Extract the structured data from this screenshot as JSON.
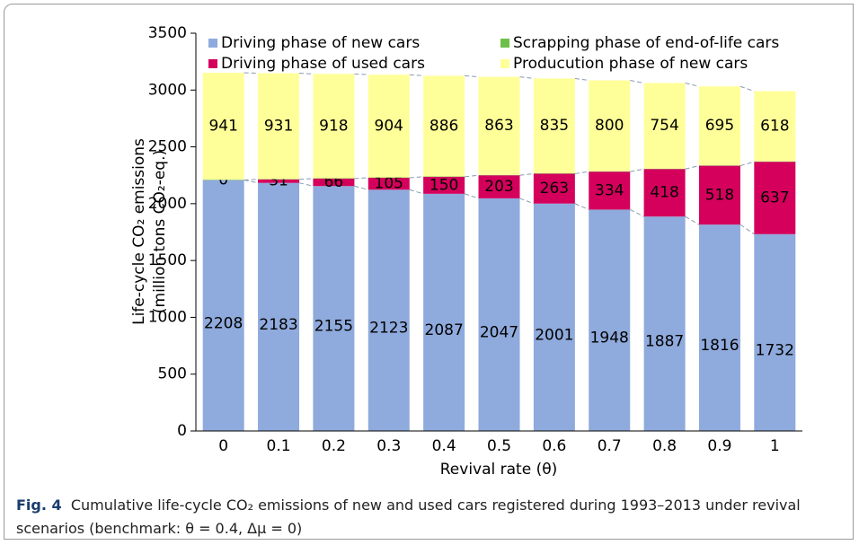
{
  "chart_data": {
    "type": "stacked_bar",
    "categories": [
      "0",
      "0.1",
      "0.2",
      "0.3",
      "0.4",
      "0.5",
      "0.6",
      "0.7",
      "0.8",
      "0.9",
      "1"
    ],
    "series": [
      {
        "name": "Driving phase of new cars",
        "color": "#8faadc",
        "values": [
          2208,
          2183,
          2155,
          2123,
          2087,
          2047,
          2001,
          1948,
          1887,
          1816,
          1732
        ]
      },
      {
        "name": "Scrapping phase of end-of-life cars",
        "color": "#6cc04a",
        "values": [
          3,
          3,
          3,
          3,
          3,
          3,
          3,
          3,
          3,
          3,
          3
        ]
      },
      {
        "name": "Driving phase of used cars",
        "color": "#d4005c",
        "values": [
          0,
          31,
          66,
          105,
          150,
          203,
          263,
          334,
          418,
          518,
          637
        ]
      },
      {
        "name": "Producution phase of new cars",
        "color": "#ffff99",
        "values": [
          941,
          931,
          918,
          904,
          886,
          863,
          835,
          800,
          754,
          695,
          618
        ]
      }
    ],
    "ylim": [
      0,
      3500
    ],
    "yticks": [
      0,
      500,
      1000,
      1500,
      2000,
      2500,
      3000,
      3500
    ],
    "ylabel": [
      "Life-cycle CO₂ emissions",
      "(million tons CO₂-eq.)"
    ],
    "xlabel": "Revival rate (θ)",
    "caption": {
      "label": "Fig. 4",
      "text": "Cumulative life-cycle CO₂ emissions of new and used cars registered during 1993–2013 under revival scenarios (benchmark: θ = 0.4, Δμ = 0)"
    }
  }
}
